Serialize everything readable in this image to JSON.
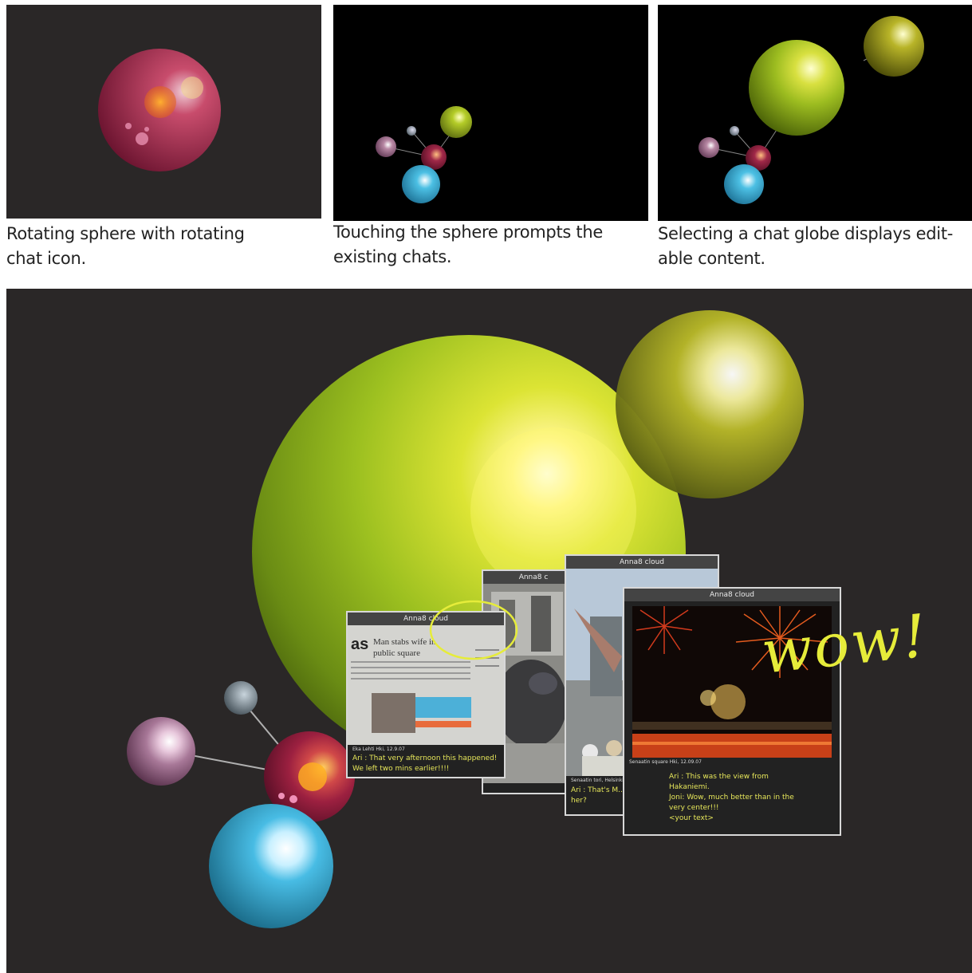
{
  "captions": [
    {
      "text": "Rotating sphere with rotating chat icon."
    },
    {
      "text": "Touching the sphere prompts the existing chats."
    },
    {
      "text": "Selecting a chat globe displays edit-able content."
    }
  ],
  "cards": [
    {
      "title": "Anna8 cloud",
      "meta": "Eka Lehti Hki, 12.9.07",
      "chat": "Ari : That very afternoon this happened! We left two mins earlier!!!!",
      "headline": "Man stabs wife in public square"
    },
    {
      "title": "Anna8 c",
      "meta": "",
      "chat": ""
    },
    {
      "title": "Anna8 cloud",
      "meta": "Senaatin tori, Helsinki",
      "chat": "Ari : That's M... with her?"
    },
    {
      "title": "Anna8 cloud",
      "meta": "Senaatin square Hki, 12.09.07",
      "chat": "Ari : This was the view from Hakaniemi.\nJoni: Wow, much better than in the very center!!!\n<your text>"
    }
  ],
  "handwriting": "wow!",
  "colors": {
    "panel_bg": "#2a2727",
    "panel_black": "#000000",
    "green": "#a8c21e",
    "magenta": "#8c1e3c",
    "cyan": "#3cb4dc",
    "pink": "#b482a0",
    "grey": "#6e7a82",
    "highlight": "#e6ec3a"
  }
}
